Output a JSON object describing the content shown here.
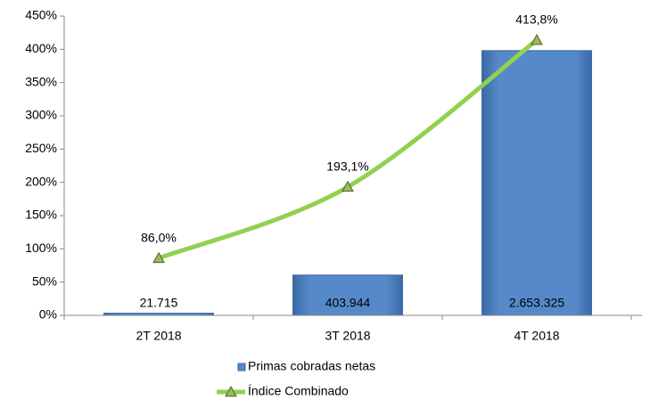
{
  "chart_data": {
    "type": "bar-line",
    "categories": [
      "2T 2018",
      "3T 2018",
      "4T 2018"
    ],
    "series": [
      {
        "name": "Primas cobradas netas",
        "type": "bar",
        "axis": "y2",
        "color": "#4f81bd",
        "values": [
          21715,
          403944,
          2653325
        ],
        "value_labels": [
          "21.715",
          "403.944",
          "2.653.325"
        ]
      },
      {
        "name": "Índice Combinado",
        "type": "line",
        "color": "#92d050",
        "values": [
          86.0,
          193.1,
          413.8
        ],
        "value_labels": [
          "86,0%",
          "193,1%",
          "413,8%"
        ]
      }
    ],
    "ylim": [
      0,
      450
    ],
    "yticks": [
      {
        "value": 0,
        "label": "0%"
      },
      {
        "value": 50,
        "label": "50%"
      },
      {
        "value": 100,
        "label": "100%"
      },
      {
        "value": 150,
        "label": "150%"
      },
      {
        "value": 200,
        "label": "200%"
      },
      {
        "value": 250,
        "label": "250%"
      },
      {
        "value": 300,
        "label": "300%"
      },
      {
        "value": 350,
        "label": "350%"
      },
      {
        "value": 400,
        "label": "400%"
      },
      {
        "value": 450,
        "label": "450%"
      }
    ],
    "y2lim": [
      0,
      3000000
    ],
    "grid": false,
    "legend": "bottom"
  }
}
